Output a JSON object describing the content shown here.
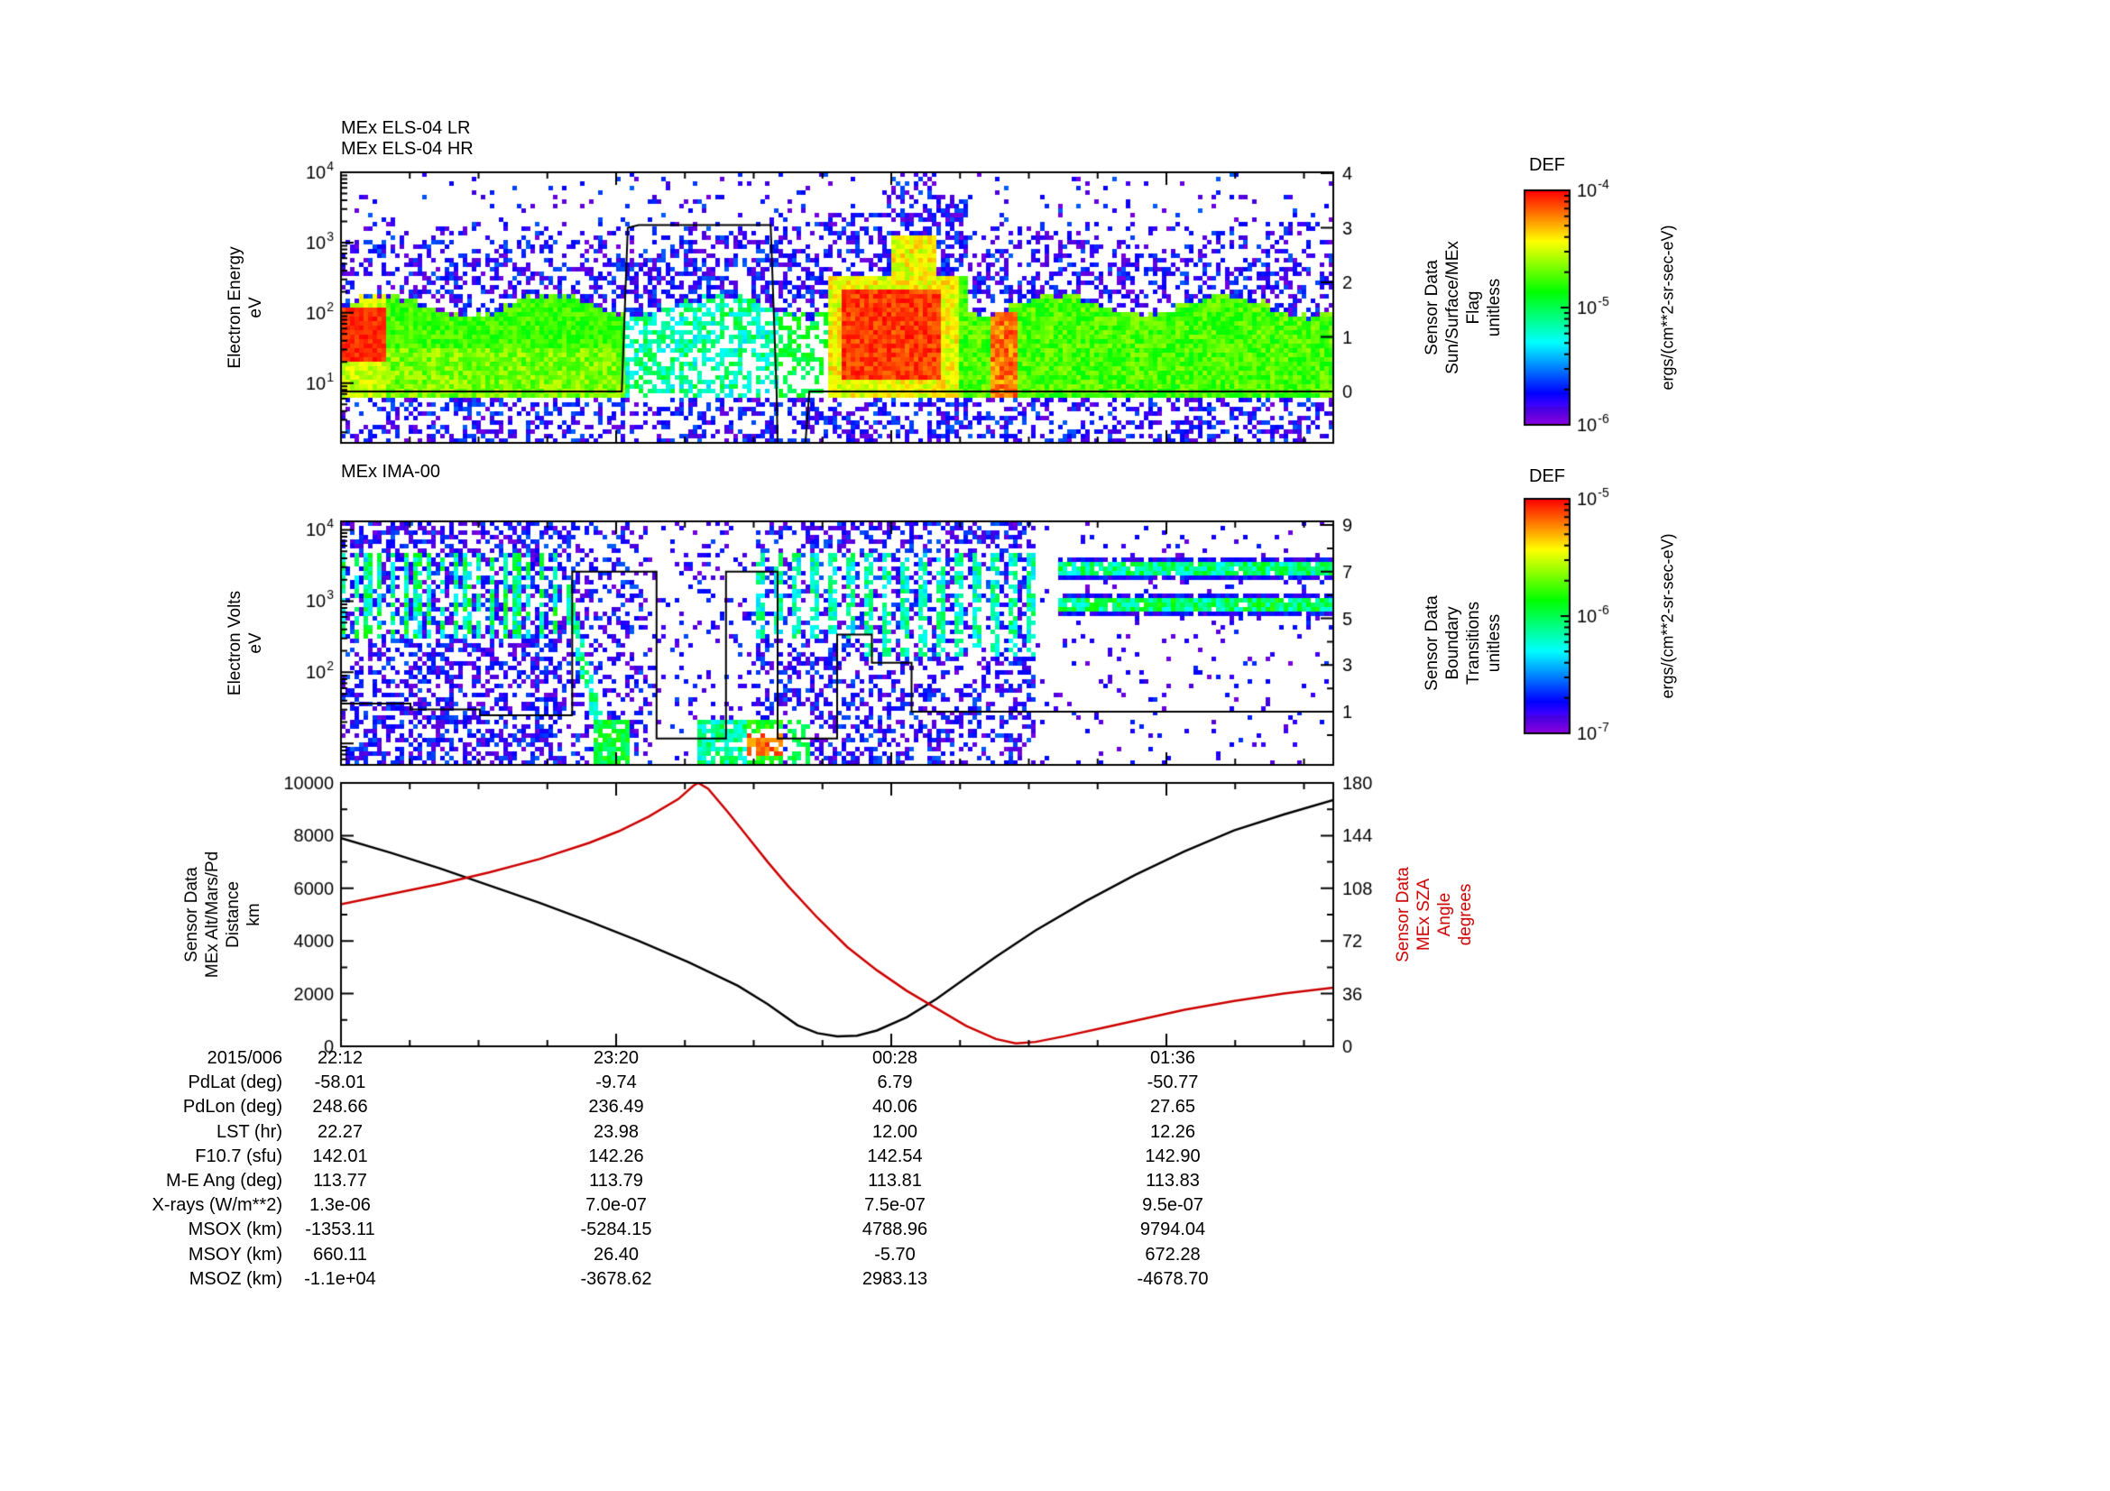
{
  "page": {
    "background": "#ffffff"
  },
  "time_axis": {
    "date_label": "2015/006",
    "tick_labels": [
      "22:12",
      "23:20",
      "00:28",
      "01:36"
    ],
    "n_minor_per_major": 4
  },
  "chart_data": [
    {
      "type": "heatmap",
      "id": "els_spectrogram",
      "titles": [
        "MEx ELS-04 LR",
        "MEx ELS-04 HR"
      ],
      "ylabel": "Electron Energy\neV",
      "y_scale": "log",
      "y_tick_exponents": [
        4,
        3,
        2,
        1
      ],
      "y_range_log10": [
        0.15,
        4.0
      ],
      "right_axis": {
        "label": "Sensor Data\nSun/Surface/MEx\nFlag\nunitless",
        "ticks": [
          0,
          1,
          2,
          3,
          4
        ],
        "range": [
          0,
          4
        ]
      },
      "overlay_series": {
        "name": "flag",
        "color": "#000000",
        "points": [
          [
            0,
            0
          ],
          [
            0.283,
            0
          ],
          [
            0.289,
            3.0
          ],
          [
            0.3,
            3.05
          ],
          [
            0.433,
            3.05
          ],
          [
            0.439,
            0
          ],
          [
            0.44,
            -0.95
          ],
          [
            0.468,
            -0.95
          ],
          [
            0.472,
            0
          ],
          [
            1,
            0
          ]
        ]
      },
      "features": {
        "main_band_log_range": [
          0.78,
          2.05
        ],
        "intense_red_intervals": [
          [
            0.0,
            0.045
          ],
          [
            0.503,
            0.605
          ]
        ],
        "fragmented_interval": [
          0.285,
          0.49
        ],
        "enhanced_top_interval": [
          0.49,
          0.63
        ]
      },
      "colorbar": {
        "title": "DEF",
        "units": "ergs/(cm**2-sr-sec-eV)",
        "tick_exponents": [
          -4,
          -5,
          -6
        ]
      }
    },
    {
      "type": "heatmap",
      "id": "ima_spectrogram",
      "titles": [
        "MEx IMA-00"
      ],
      "ylabel": "Electron Volts\neV",
      "y_scale": "log",
      "y_tick_exponents": [
        4,
        3,
        2
      ],
      "y_range_log10": [
        0.7,
        4.12
      ],
      "right_axis": {
        "label": "Sensor Data\nBoundary\nTransitions\nunitless",
        "ticks": [
          9,
          7,
          5,
          3,
          1
        ],
        "range": [
          1,
          9
        ]
      },
      "overlay_series": {
        "name": "boundary_transitions",
        "color": "#000000",
        "points": [
          [
            0,
            1.35
          ],
          [
            0.07,
            1.35
          ],
          [
            0.07,
            1.1
          ],
          [
            0.14,
            1.1
          ],
          [
            0.14,
            0.85
          ],
          [
            0.233,
            0.85
          ],
          [
            0.233,
            7.0
          ],
          [
            0.318,
            7.0
          ],
          [
            0.318,
            -0.15
          ],
          [
            0.388,
            -0.15
          ],
          [
            0.388,
            7.0
          ],
          [
            0.44,
            7.0
          ],
          [
            0.44,
            -0.15
          ],
          [
            0.5,
            -0.15
          ],
          [
            0.5,
            4.3
          ],
          [
            0.535,
            4.3
          ],
          [
            0.535,
            3.1
          ],
          [
            0.575,
            3.1
          ],
          [
            0.575,
            1.0
          ],
          [
            1,
            1.0
          ]
        ]
      },
      "features": {
        "striped_interval": [
          0,
          0.225
        ],
        "sparse_interval": [
          0.31,
          0.42
        ],
        "banded_interval": [
          0.725,
          1.0
        ],
        "band_log_ranges": [
          [
            3.28,
            3.64
          ],
          [
            2.76,
            3.1
          ]
        ],
        "bottom_blob_red_t": 0.425
      },
      "colorbar": {
        "title": "DEF",
        "units": "ergs/(cm**2-sr-sec-eV)",
        "tick_exponents": [
          -5,
          -6,
          -7
        ]
      }
    },
    {
      "type": "line",
      "id": "ephemeris_lines",
      "left_axis": {
        "label": "Sensor Data\nMEx Alt/Mars/Pd\nDistance\nkm",
        "ticks": [
          0,
          2000,
          4000,
          6000,
          8000,
          10000
        ],
        "range": [
          0,
          10000
        ]
      },
      "right_axis": {
        "label": "Sensor Data\nMEx SZA\nAngle\ndegrees",
        "ticks": [
          0,
          36,
          72,
          108,
          144,
          180
        ],
        "range": [
          0,
          180
        ],
        "color": "#cc0000"
      },
      "series": [
        {
          "name": "altitude_km",
          "axis": "left",
          "color": "#000000",
          "points": [
            [
              0,
              7900
            ],
            [
              0.05,
              7350
            ],
            [
              0.1,
              6750
            ],
            [
              0.15,
              6100
            ],
            [
              0.2,
              5450
            ],
            [
              0.25,
              4750
            ],
            [
              0.3,
              4000
            ],
            [
              0.35,
              3200
            ],
            [
              0.4,
              2300
            ],
            [
              0.43,
              1600
            ],
            [
              0.46,
              800
            ],
            [
              0.48,
              500
            ],
            [
              0.5,
              380
            ],
            [
              0.52,
              400
            ],
            [
              0.54,
              600
            ],
            [
              0.57,
              1100
            ],
            [
              0.6,
              1800
            ],
            [
              0.63,
              2600
            ],
            [
              0.66,
              3400
            ],
            [
              0.7,
              4400
            ],
            [
              0.75,
              5500
            ],
            [
              0.8,
              6500
            ],
            [
              0.85,
              7400
            ],
            [
              0.9,
              8200
            ],
            [
              0.95,
              8800
            ],
            [
              1.0,
              9350
            ]
          ]
        },
        {
          "name": "sza_deg",
          "axis": "right",
          "color": "#cc0000",
          "points": [
            [
              0,
              97
            ],
            [
              0.05,
              104
            ],
            [
              0.1,
              111
            ],
            [
              0.15,
              119
            ],
            [
              0.2,
              128
            ],
            [
              0.25,
              139
            ],
            [
              0.28,
              147
            ],
            [
              0.31,
              157
            ],
            [
              0.34,
              169
            ],
            [
              0.355,
              178
            ],
            [
              0.36,
              180
            ],
            [
              0.37,
              176
            ],
            [
              0.39,
              160
            ],
            [
              0.41,
              143
            ],
            [
              0.43,
              126
            ],
            [
              0.45,
              110
            ],
            [
              0.48,
              88
            ],
            [
              0.51,
              68
            ],
            [
              0.54,
              52
            ],
            [
              0.57,
              38
            ],
            [
              0.6,
              26
            ],
            [
              0.63,
              14
            ],
            [
              0.66,
              5
            ],
            [
              0.68,
              2
            ],
            [
              0.7,
              3
            ],
            [
              0.73,
              7
            ],
            [
              0.77,
              13
            ],
            [
              0.81,
              19
            ],
            [
              0.85,
              25
            ],
            [
              0.9,
              31
            ],
            [
              0.95,
              36
            ],
            [
              1.0,
              40
            ]
          ]
        }
      ]
    }
  ],
  "table": {
    "row_labels": [
      "2015/006",
      "PdLat (deg)",
      "PdLon (deg)",
      "LST (hr)",
      "F10.7 (sfu)",
      "M-E Ang (deg)",
      "X-rays (W/m**2)",
      "MSOX (km)",
      "MSOY (km)",
      "MSOZ (km)"
    ],
    "rows": [
      [
        "22:12",
        "23:20",
        "00:28",
        "01:36"
      ],
      [
        "-58.01",
        "-9.74",
        "6.79",
        "-50.77"
      ],
      [
        "248.66",
        "236.49",
        "40.06",
        "27.65"
      ],
      [
        "22.27",
        "23.98",
        "12.00",
        "12.26"
      ],
      [
        "142.01",
        "142.26",
        "142.54",
        "142.90"
      ],
      [
        "113.77",
        "113.79",
        "113.81",
        "113.83"
      ],
      [
        "1.3e-06",
        "7.0e-07",
        "7.5e-07",
        "9.5e-07"
      ],
      [
        "-1353.11",
        "-5284.15",
        "4788.96",
        "9794.04"
      ],
      [
        "660.11",
        "26.40",
        "-5.70",
        "672.28"
      ],
      [
        "-1.1e+04",
        "-3678.62",
        "2983.13",
        "-4678.70"
      ]
    ]
  }
}
